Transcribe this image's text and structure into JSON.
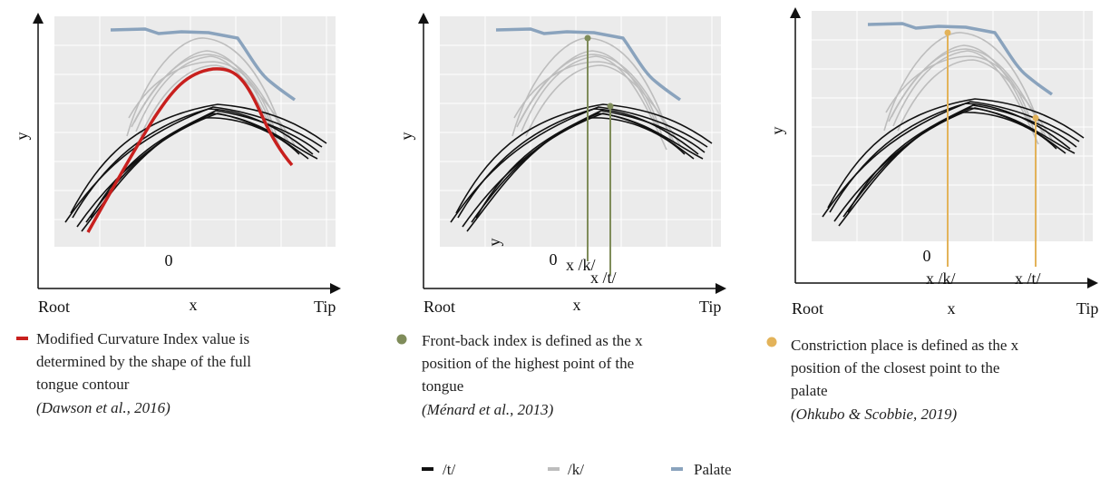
{
  "panels": [
    {
      "y_label": "y",
      "zero": "0",
      "root": "Root",
      "x_label": "x",
      "tip": "Tip",
      "caption": [
        "Modified Curvature Index value is",
        "determined by the shape of the full",
        "tongue contour"
      ],
      "citation": "(Dawson et al., 2016)"
    },
    {
      "y_label": "y",
      "zero": "0",
      "root": "Root",
      "x_label": "x",
      "tip": "Tip",
      "extra_label": "y",
      "markers": [
        "x /k/",
        "x /t/"
      ],
      "caption": [
        "Front-back index is defined as the x",
        "position of the highest point of the",
        "tongue"
      ],
      "citation": "(Ménard et al., 2013)"
    },
    {
      "y_label": "y",
      "zero": "0",
      "root": "Root",
      "x_label": "x",
      "tip": "Tip",
      "markers": [
        "x /k/",
        "x /t/"
      ],
      "caption": [
        "Constriction place is defined as the x",
        "position of the closest point to the",
        "palate"
      ],
      "citation": "(Ohkubo & Scobbie, 2019)"
    }
  ],
  "legend": [
    "/t/",
    "/k/",
    "Palate"
  ]
}
